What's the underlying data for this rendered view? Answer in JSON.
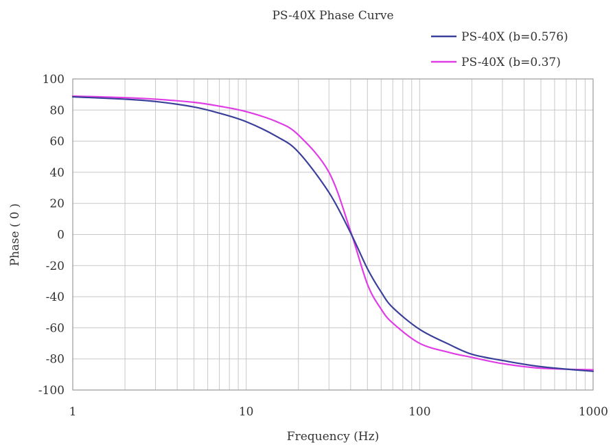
{
  "chart_data": {
    "type": "line",
    "title": "PS-40X Phase Curve",
    "xlabel": "Frequency (Hz)",
    "ylabel": "Phase ( 0 )",
    "x_scale": "log",
    "xlim": [
      1,
      1000
    ],
    "ylim": [
      -100,
      100
    ],
    "grid": true,
    "legend_position": "top-right",
    "x_ticks": [
      1,
      10,
      100,
      1000
    ],
    "x_tick_labels": [
      "1",
      "10",
      "100",
      "1000"
    ],
    "y_ticks": [
      100,
      80,
      60,
      40,
      20,
      0,
      -20,
      -40,
      -60,
      -80,
      -100
    ],
    "y_tick_labels": [
      "100",
      "80",
      "60",
      "40",
      "20",
      "0",
      "-20",
      "-40",
      "-60",
      "-80",
      "-100"
    ],
    "series": [
      {
        "name": "PS-40X (b=0.576)",
        "color": "#3a3f9a",
        "points": [
          [
            1,
            88.5
          ],
          [
            2,
            87
          ],
          [
            3,
            85.5
          ],
          [
            5,
            82
          ],
          [
            7,
            78
          ],
          [
            10,
            72.5
          ],
          [
            15,
            63
          ],
          [
            20,
            53
          ],
          [
            30,
            27
          ],
          [
            40,
            1
          ],
          [
            50,
            -22
          ],
          [
            60,
            -37
          ],
          [
            70,
            -47
          ],
          [
            100,
            -61
          ],
          [
            150,
            -71
          ],
          [
            200,
            -77
          ],
          [
            300,
            -81
          ],
          [
            500,
            -85
          ],
          [
            1000,
            -88
          ]
        ]
      },
      {
        "name": "PS-40X (b=0.37)",
        "color": "#e03ce6",
        "points": [
          [
            1,
            89
          ],
          [
            2,
            88
          ],
          [
            3,
            87
          ],
          [
            5,
            85
          ],
          [
            7,
            82.5
          ],
          [
            10,
            79
          ],
          [
            15,
            72.5
          ],
          [
            20,
            64
          ],
          [
            30,
            40
          ],
          [
            40,
            2
          ],
          [
            50,
            -32
          ],
          [
            60,
            -48
          ],
          [
            70,
            -57
          ],
          [
            100,
            -70
          ],
          [
            150,
            -76
          ],
          [
            200,
            -79
          ],
          [
            300,
            -83
          ],
          [
            500,
            -86
          ],
          [
            1000,
            -87
          ]
        ]
      }
    ]
  }
}
